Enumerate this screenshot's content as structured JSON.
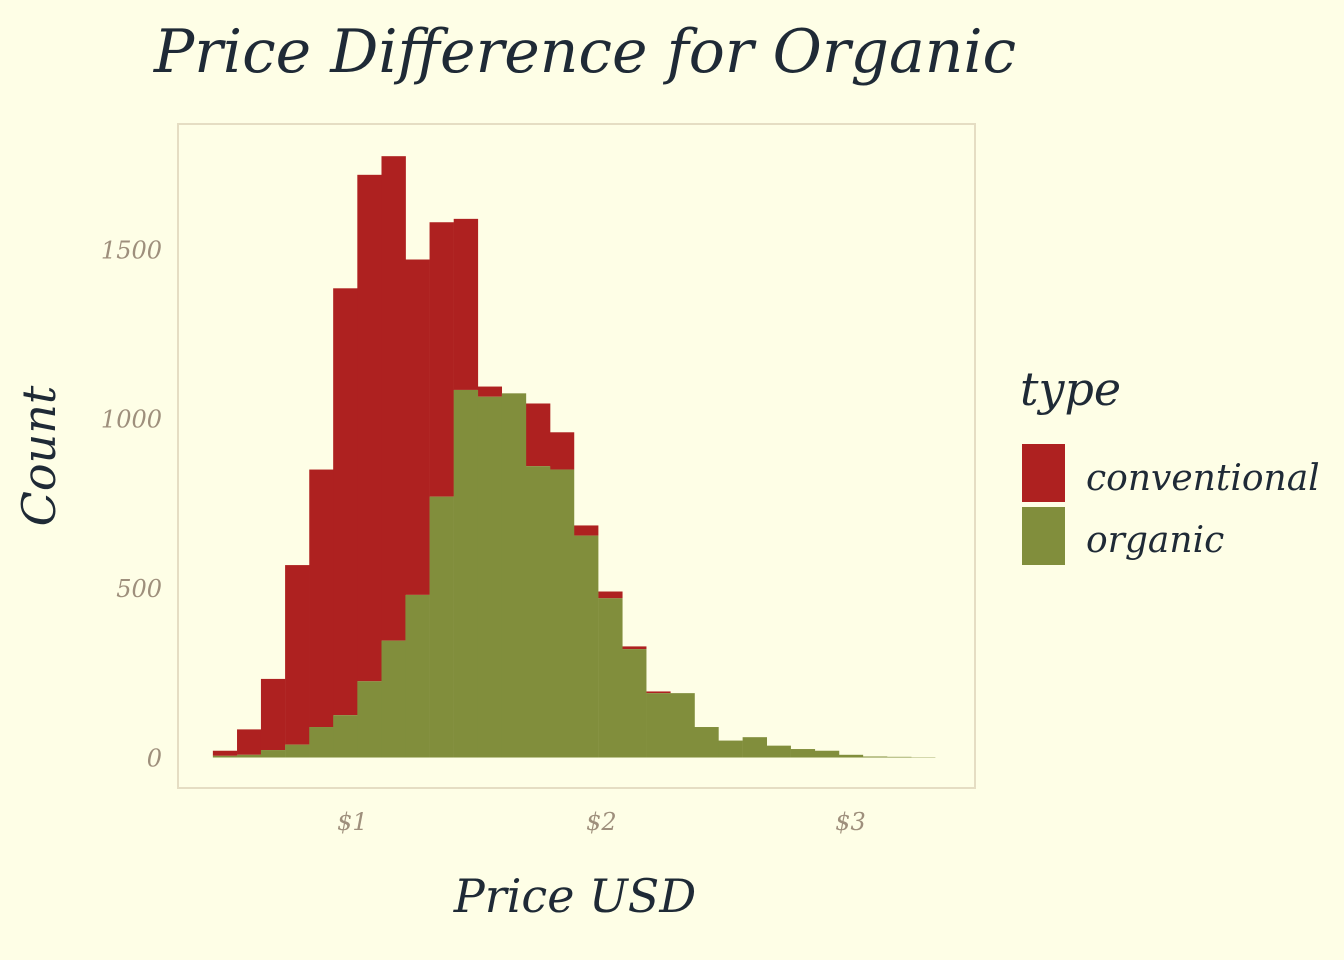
{
  "chart_data": {
    "type": "bar",
    "subtype": "stacked-histogram",
    "title": "Price Difference for Organic",
    "xlabel": "Price USD",
    "ylabel": "Count",
    "x_ticks": [
      {
        "value": 1,
        "label": "$1"
      },
      {
        "value": 2,
        "label": "$2"
      },
      {
        "value": 3,
        "label": "$3"
      }
    ],
    "y_ticks": [
      {
        "value": 0,
        "label": "0"
      },
      {
        "value": 500,
        "label": "500"
      },
      {
        "value": 1000,
        "label": "1000"
      },
      {
        "value": 1500,
        "label": "1500"
      }
    ],
    "xlim": [
      0.3,
      3.5
    ],
    "ylim": [
      -90,
      1870
    ],
    "bin_width": 0.0967,
    "bin_starts": [
      0.44,
      0.537,
      0.633,
      0.73,
      0.827,
      0.923,
      1.02,
      1.117,
      1.213,
      1.31,
      1.407,
      1.503,
      1.6,
      1.697,
      1.793,
      1.89,
      1.987,
      2.083,
      2.18,
      2.277,
      2.373,
      2.47,
      2.567,
      2.663,
      2.76,
      2.857,
      2.953,
      3.05,
      3.147,
      3.243
    ],
    "series": [
      {
        "name": "organic",
        "color": "#818E3C",
        "values": [
          5,
          8,
          22,
          38,
          90,
          125,
          225,
          345,
          480,
          770,
          1085,
          1065,
          1075,
          860,
          850,
          655,
          470,
          320,
          190,
          190,
          90,
          50,
          60,
          35,
          25,
          20,
          8,
          3,
          2,
          1
        ]
      },
      {
        "name": "conventional",
        "color": "#AE2120",
        "values": [
          15,
          75,
          210,
          530,
          760,
          1260,
          1495,
          1430,
          990,
          810,
          505,
          30,
          0,
          185,
          110,
          30,
          20,
          8,
          5,
          0,
          0,
          0,
          0,
          0,
          0,
          0,
          0,
          0,
          0,
          0
        ]
      }
    ],
    "legend": {
      "title": "type",
      "position": "right",
      "entries": [
        "conventional",
        "organic"
      ]
    },
    "grid": false
  }
}
